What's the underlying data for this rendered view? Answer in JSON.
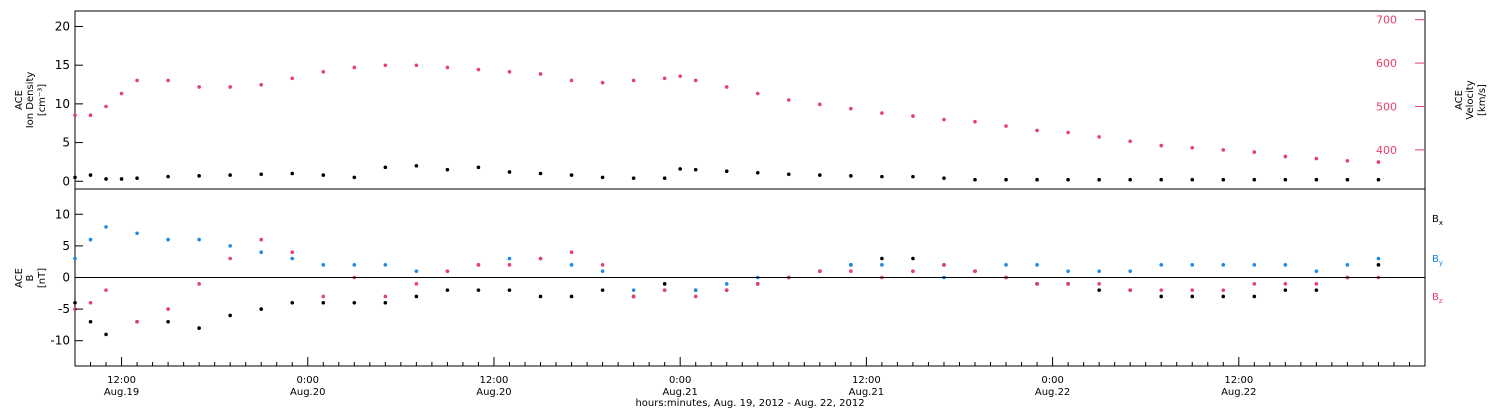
{
  "colors": {
    "axis": "#000000",
    "density": "#000000",
    "velocity": "#e8406a",
    "bx": "#000000",
    "by": "#1e88e5",
    "bz": "#e8406a"
  },
  "chart_data": [
    {
      "type": "scatter",
      "panel": "top",
      "ylabel_left": [
        "ACE",
        "Ion Density",
        "[cm⁻³]"
      ],
      "ylabel_right": [
        "ACE",
        "Velocity",
        "[km/s]"
      ],
      "ylim_left": [
        -1,
        22
      ],
      "ylim_right": [
        310,
        720
      ],
      "yticks_left": [
        0,
        5,
        10,
        15,
        20
      ],
      "yticks_right": [
        400,
        500,
        600,
        700
      ],
      "xlim_hours": [
        0,
        87
      ],
      "series": [
        {
          "axis": "left",
          "color": "density",
          "x": [
            0,
            1,
            2,
            3,
            4,
            6,
            8,
            10,
            12,
            14,
            16,
            18,
            20,
            22,
            24,
            26,
            28,
            30,
            32,
            34,
            36,
            38,
            39,
            40,
            42,
            44,
            46,
            48,
            50,
            52,
            54,
            56,
            58,
            60,
            62,
            64,
            66,
            68,
            70,
            72,
            74,
            76,
            78,
            80,
            82,
            84
          ],
          "y": [
            0.5,
            0.8,
            0.3,
            0.3,
            0.4,
            0.6,
            0.7,
            0.8,
            0.9,
            1.0,
            0.8,
            0.5,
            1.8,
            2.0,
            1.5,
            1.8,
            1.2,
            1.0,
            0.8,
            0.5,
            0.4,
            0.4,
            1.6,
            1.5,
            1.3,
            1.1,
            0.9,
            0.8,
            0.7,
            0.6,
            0.6,
            0.4,
            0.2,
            0.2,
            0.2,
            0.2,
            0.2,
            0.2,
            0.2,
            0.2,
            0.2,
            0.2,
            0.2,
            0.2,
            0.2,
            0.2
          ]
        },
        {
          "axis": "right",
          "color": "velocity",
          "x": [
            0,
            1,
            2,
            3,
            4,
            6,
            8,
            10,
            12,
            14,
            16,
            18,
            20,
            22,
            24,
            26,
            28,
            30,
            32,
            34,
            36,
            38,
            39,
            40,
            42,
            44,
            46,
            48,
            50,
            52,
            54,
            56,
            58,
            60,
            62,
            64,
            66,
            68,
            70,
            72,
            74,
            76,
            78,
            80,
            82,
            84
          ],
          "y": [
            480,
            480,
            500,
            530,
            560,
            560,
            545,
            545,
            550,
            565,
            580,
            590,
            595,
            595,
            590,
            585,
            580,
            575,
            560,
            555,
            560,
            565,
            570,
            560,
            545,
            530,
            515,
            505,
            495,
            485,
            478,
            470,
            465,
            455,
            445,
            440,
            430,
            420,
            410,
            405,
            400,
            395,
            385,
            380,
            375,
            372
          ]
        }
      ]
    },
    {
      "type": "scatter",
      "panel": "bottom",
      "ylabel": [
        "ACE",
        "B",
        "[nT]"
      ],
      "ylim": [
        -14,
        14
      ],
      "yticks": [
        -10,
        -5,
        0,
        5,
        10
      ],
      "xlim_hours": [
        0,
        87
      ],
      "legend": [
        {
          "main": "B",
          "sub": "x",
          "color": "bx"
        },
        {
          "main": "B",
          "sub": "y",
          "color": "by"
        },
        {
          "main": "B",
          "sub": "z",
          "color": "bz"
        }
      ],
      "series": [
        {
          "color": "bx",
          "x": [
            0,
            1,
            2,
            4,
            6,
            8,
            10,
            12,
            14,
            16,
            18,
            20,
            22,
            24,
            26,
            28,
            30,
            32,
            34,
            36,
            38,
            40,
            42,
            44,
            46,
            48,
            50,
            52,
            54,
            56,
            58,
            60,
            62,
            64,
            66,
            68,
            70,
            72,
            74,
            76,
            78,
            80,
            82,
            84
          ],
          "y": [
            -4,
            -7,
            -9,
            -7,
            -7,
            -8,
            -6,
            -5,
            -4,
            -4,
            -4,
            -4,
            -3,
            -2,
            -2,
            -2,
            -3,
            -3,
            -2,
            -3,
            -1,
            -2,
            -2,
            -1,
            0,
            1,
            2,
            3,
            3,
            2,
            1,
            0,
            -1,
            -1,
            -2,
            -2,
            -3,
            -3,
            -3,
            -3,
            -2,
            -2,
            0,
            2
          ]
        },
        {
          "color": "by",
          "x": [
            0,
            1,
            2,
            4,
            6,
            8,
            10,
            12,
            14,
            16,
            18,
            20,
            22,
            24,
            26,
            28,
            30,
            32,
            34,
            36,
            38,
            40,
            42,
            44,
            46,
            48,
            50,
            52,
            54,
            56,
            58,
            60,
            62,
            64,
            66,
            68,
            70,
            72,
            74,
            76,
            78,
            80,
            82,
            84
          ],
          "y": [
            3,
            6,
            8,
            7,
            6,
            6,
            5,
            4,
            3,
            2,
            2,
            2,
            1,
            1,
            2,
            3,
            3,
            2,
            1,
            -2,
            -2,
            -2,
            -1,
            0,
            0,
            1,
            2,
            2,
            1,
            0,
            1,
            2,
            2,
            1,
            1,
            1,
            2,
            2,
            2,
            2,
            2,
            1,
            2,
            3
          ]
        },
        {
          "color": "bz",
          "x": [
            0,
            1,
            2,
            4,
            6,
            8,
            10,
            12,
            14,
            16,
            18,
            20,
            22,
            24,
            26,
            28,
            30,
            32,
            34,
            36,
            38,
            40,
            42,
            44,
            46,
            48,
            50,
            52,
            54,
            56,
            58,
            60,
            62,
            64,
            66,
            68,
            70,
            72,
            74,
            76,
            78,
            80,
            82,
            84
          ],
          "y": [
            -5,
            -4,
            -2,
            -7,
            -5,
            -1,
            3,
            6,
            4,
            -3,
            0,
            -3,
            -1,
            1,
            2,
            2,
            3,
            4,
            2,
            -3,
            -2,
            -3,
            -2,
            -1,
            0,
            1,
            1,
            0,
            1,
            2,
            1,
            0,
            -1,
            -1,
            -1,
            -2,
            -2,
            -2,
            -2,
            -1,
            -1,
            -1,
            0,
            0
          ]
        }
      ]
    }
  ],
  "xaxis": {
    "tick_labels": [
      {
        "hour": 3,
        "time": "12:00",
        "date": "Aug.19"
      },
      {
        "hour": 15,
        "time": "0:00",
        "date": "Aug.20"
      },
      {
        "hour": 27,
        "time": "12:00",
        "date": "Aug.20"
      },
      {
        "hour": 39,
        "time": "0:00",
        "date": "Aug.21"
      },
      {
        "hour": 51,
        "time": "12:00",
        "date": "Aug.21"
      },
      {
        "hour": 63,
        "time": "0:00",
        "date": "Aug.22"
      },
      {
        "hour": 75,
        "time": "12:00",
        "date": "Aug.22"
      }
    ],
    "title": "hours:minutes, Aug. 19, 2012 - Aug. 22, 2012"
  }
}
